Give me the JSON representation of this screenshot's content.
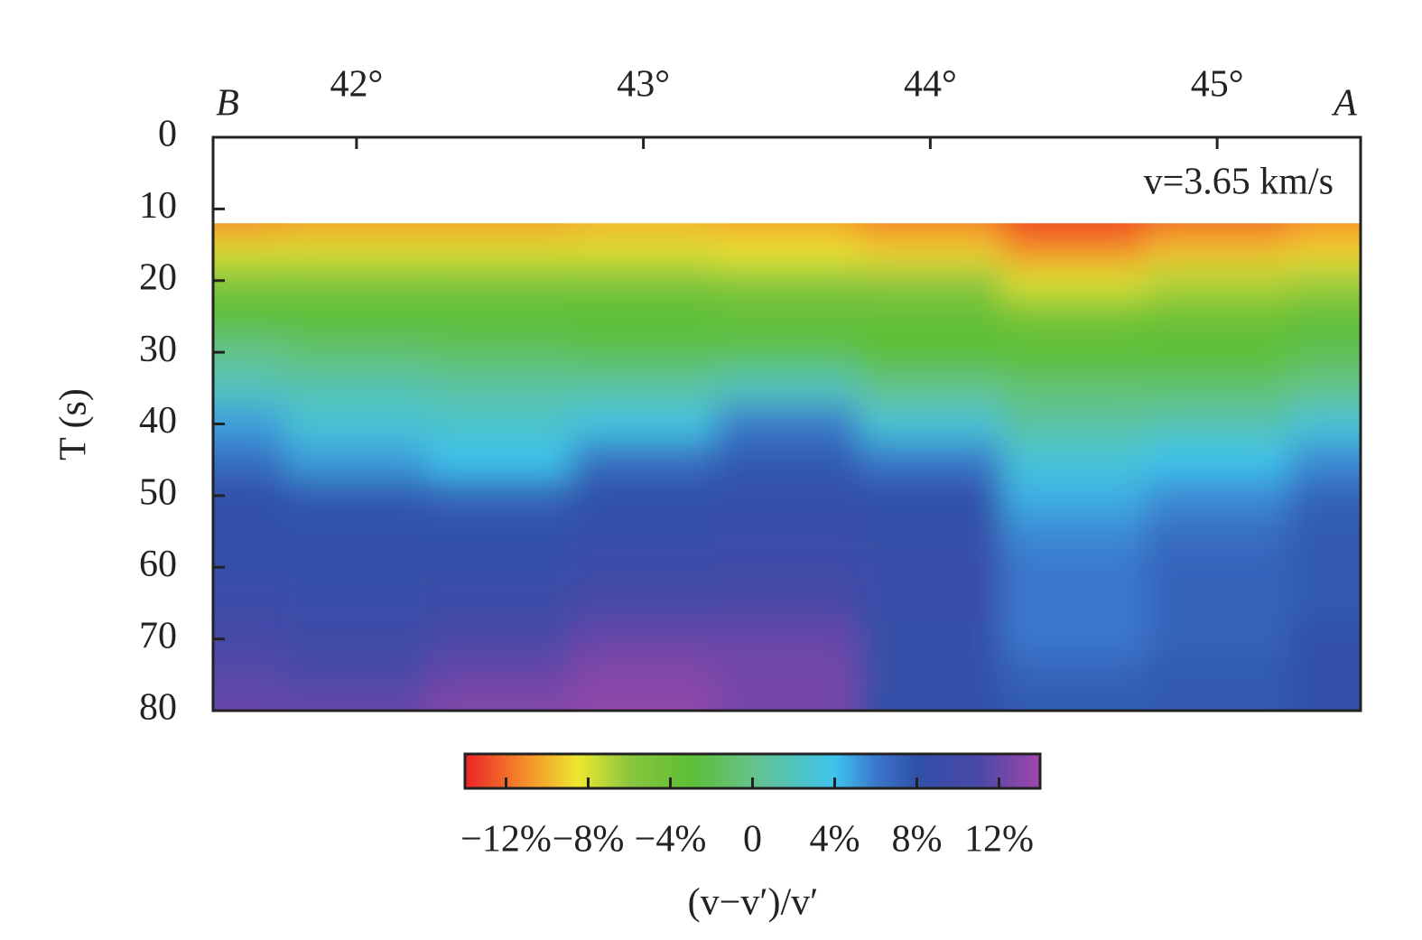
{
  "chart_data": {
    "type": "heatmap",
    "labels": {
      "left_end": "B",
      "right_end": "A"
    },
    "annotation": "v=3.65 km/s",
    "ylabel": "T (s)",
    "colorbar_label": "(v−v′)/v′",
    "x": [
      41.5,
      42,
      42.5,
      43,
      43.5,
      44,
      44.5,
      45,
      45.5
    ],
    "y": [
      12,
      16,
      20,
      25,
      30,
      35,
      40,
      45,
      50,
      55,
      60,
      65,
      70,
      75,
      80
    ],
    "z": [
      [
        -11,
        -10.5,
        -10.5,
        -10,
        -10.5,
        -11.5,
        -13,
        -12,
        -11
      ],
      [
        -8,
        -8,
        -8,
        -8,
        -8.5,
        -9,
        -11,
        -9.5,
        -9
      ],
      [
        -5,
        -5,
        -5,
        -5,
        -5.5,
        -6,
        -8,
        -7,
        -6.5
      ],
      [
        -3,
        -3,
        -3,
        -3,
        -3.5,
        -3.5,
        -4.5,
        -4,
        -3.5
      ],
      [
        0,
        -1,
        -1.5,
        -2,
        -2,
        -3,
        -3,
        -3,
        -2
      ],
      [
        2,
        1.5,
        1,
        1,
        2,
        0,
        -1,
        -1,
        0
      ],
      [
        5,
        3,
        2.5,
        3.5,
        6,
        3,
        1,
        1.5,
        3
      ],
      [
        6.5,
        5,
        4,
        6.5,
        7.5,
        6,
        3,
        4,
        5.5
      ],
      [
        8,
        7.5,
        7,
        8,
        8.5,
        8,
        4.5,
        5.5,
        7
      ],
      [
        8,
        8,
        8,
        8.5,
        9,
        8.5,
        5.5,
        6.5,
        7.5
      ],
      [
        8.5,
        8.5,
        8.5,
        9.5,
        10,
        9,
        6,
        7,
        7.5
      ],
      [
        9.5,
        9,
        9.5,
        10.5,
        11,
        9,
        6,
        7,
        7.5
      ],
      [
        10.5,
        10,
        11,
        12,
        12,
        8.5,
        6,
        7,
        8
      ],
      [
        11.5,
        11,
        12,
        13,
        12.5,
        8.5,
        7,
        7.5,
        8
      ],
      [
        12,
        12,
        13,
        13.5,
        12.5,
        8,
        7.5,
        7.5,
        8
      ]
    ],
    "xlim": [
      41.5,
      45.5
    ],
    "xticks": [
      {
        "value": 42,
        "label": "42°"
      },
      {
        "value": 43,
        "label": "43°"
      },
      {
        "value": 44,
        "label": "44°"
      },
      {
        "value": 45,
        "label": "45°"
      }
    ],
    "ylim": [
      0,
      80
    ],
    "yticks": [
      0,
      10,
      20,
      30,
      40,
      50,
      60,
      70,
      80
    ],
    "y_inverted": true,
    "zlim": [
      -14,
      14
    ],
    "zticks": [
      {
        "value": -12,
        "label": "−12%"
      },
      {
        "value": -8,
        "label": "−8%"
      },
      {
        "value": -4,
        "label": "−4%"
      },
      0,
      {
        "value": 4,
        "label": "4%"
      },
      {
        "value": 8,
        "label": "8%"
      },
      {
        "value": 12,
        "label": "12%"
      }
    ],
    "colorscale": [
      [
        -14,
        "#ec2227"
      ],
      [
        -11,
        "#f5902b"
      ],
      [
        -8.5,
        "#ede830"
      ],
      [
        -6,
        "#8cc63f"
      ],
      [
        -3,
        "#5cbf35"
      ],
      [
        0,
        "#66c28a"
      ],
      [
        4,
        "#3dc4ee"
      ],
      [
        6,
        "#3b78cc"
      ],
      [
        8,
        "#3050a8"
      ],
      [
        11,
        "#4a48a8"
      ],
      [
        14,
        "#a046aa"
      ]
    ]
  }
}
